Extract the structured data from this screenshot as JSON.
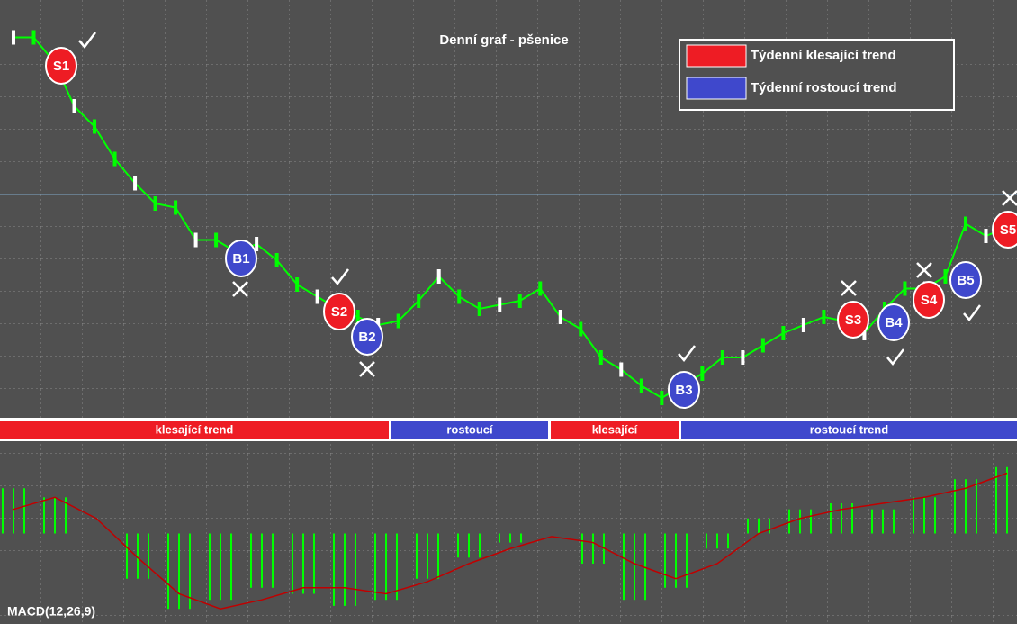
{
  "chart_data": [
    {
      "type": "line",
      "title": "Denní graf - pšenice",
      "color": "#00ff00",
      "legend": [
        {
          "name": "Týdenní klesající trend",
          "color": "#ee1c24"
        },
        {
          "name": "Týdenní rostoucí trend",
          "color": "#3f48cc"
        }
      ],
      "values": [
        93,
        93,
        87,
        76,
        71,
        63,
        57,
        52,
        51,
        43,
        43,
        40,
        42,
        38,
        32,
        29,
        26,
        24,
        22,
        23,
        28,
        34,
        29,
        26,
        27,
        28,
        31,
        24,
        21,
        14,
        11,
        7,
        4,
        7,
        10,
        14,
        14,
        17,
        20,
        22,
        24,
        23,
        20,
        26,
        31,
        31,
        34,
        47,
        44,
        46
      ],
      "ylim": [
        0,
        100
      ],
      "signals": [
        "S1",
        "B1",
        "S2",
        "B2",
        "B3",
        "S3",
        "B4",
        "S4",
        "B5",
        "S5"
      ],
      "trend_labels": [
        "klesající trend",
        "rostoucí",
        "klesající",
        "rostoucí trend"
      ]
    },
    {
      "type": "bar",
      "title": "MACD(12,26,9)",
      "color": "#00ff00",
      "signal_color": "#c00000",
      "values": [
        15,
        12,
        0,
        -15,
        -25,
        -22,
        -18,
        -20,
        -24,
        -22,
        -15,
        -8,
        -3,
        0,
        -10,
        -22,
        -18,
        -5,
        5,
        8,
        10,
        8,
        12,
        18,
        22
      ],
      "signal": [
        8,
        12,
        5,
        -8,
        -20,
        -25,
        -22,
        -18,
        -18,
        -20,
        -16,
        -10,
        -5,
        -1,
        -3,
        -10,
        -15,
        -10,
        0,
        5,
        8,
        10,
        12,
        15,
        20
      ],
      "ylim": [
        -30,
        30
      ]
    }
  ]
}
